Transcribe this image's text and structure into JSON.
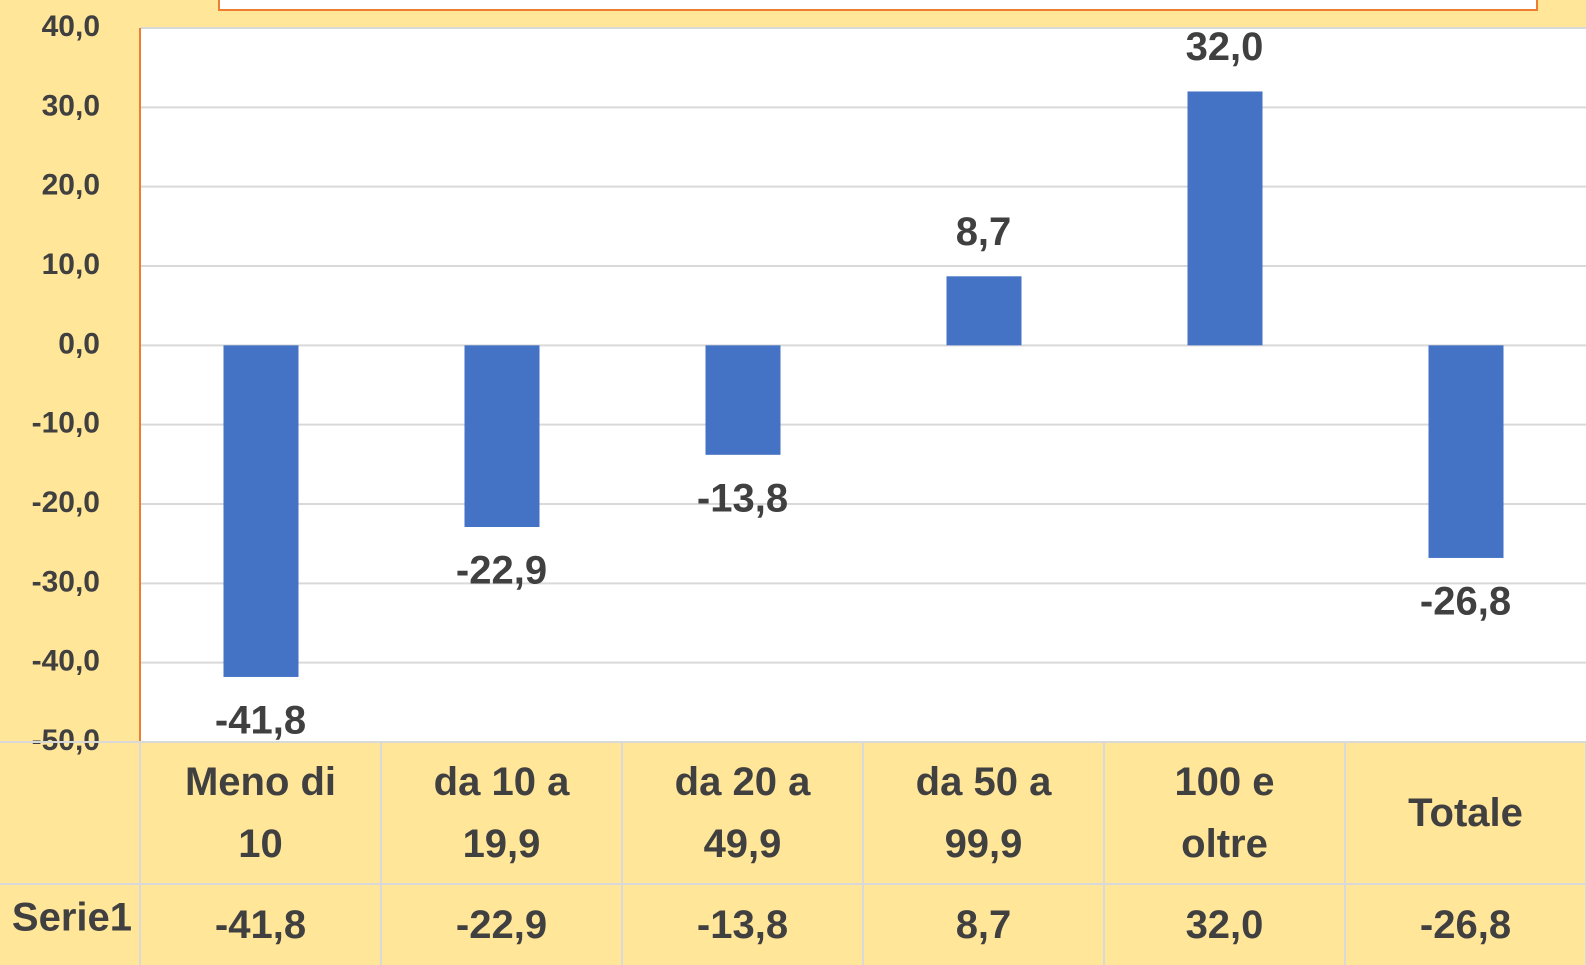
{
  "chart_data": {
    "type": "bar",
    "categories": [
      "Meno di 10",
      "da 10 a 19,9",
      "da 20 a 49,9",
      "da 50 a 99,9",
      "100 e oltre",
      "Totale"
    ],
    "series": [
      {
        "name": "Serie1",
        "color": "#4472c4",
        "values": [
          -41.8,
          -22.9,
          -13.8,
          8.7,
          32.0,
          -26.8
        ],
        "value_labels": [
          "-41,8",
          "-22,9",
          "-13,8",
          "8,7",
          "32,0",
          "-26,8"
        ]
      }
    ],
    "ylim": [
      -50,
      40
    ],
    "yticks": [
      {
        "value": -50,
        "label": "-50,0"
      },
      {
        "value": -40,
        "label": "-40,0"
      },
      {
        "value": -30,
        "label": "-30,0"
      },
      {
        "value": -20,
        "label": "-20,0"
      },
      {
        "value": -10,
        "label": "-10,0"
      },
      {
        "value": 0,
        "label": "0,0"
      },
      {
        "value": 10,
        "label": "10,0"
      },
      {
        "value": 20,
        "label": "20,0"
      },
      {
        "value": 30,
        "label": "30,0"
      },
      {
        "value": 40,
        "label": "40,0"
      }
    ],
    "grid": true
  }
}
